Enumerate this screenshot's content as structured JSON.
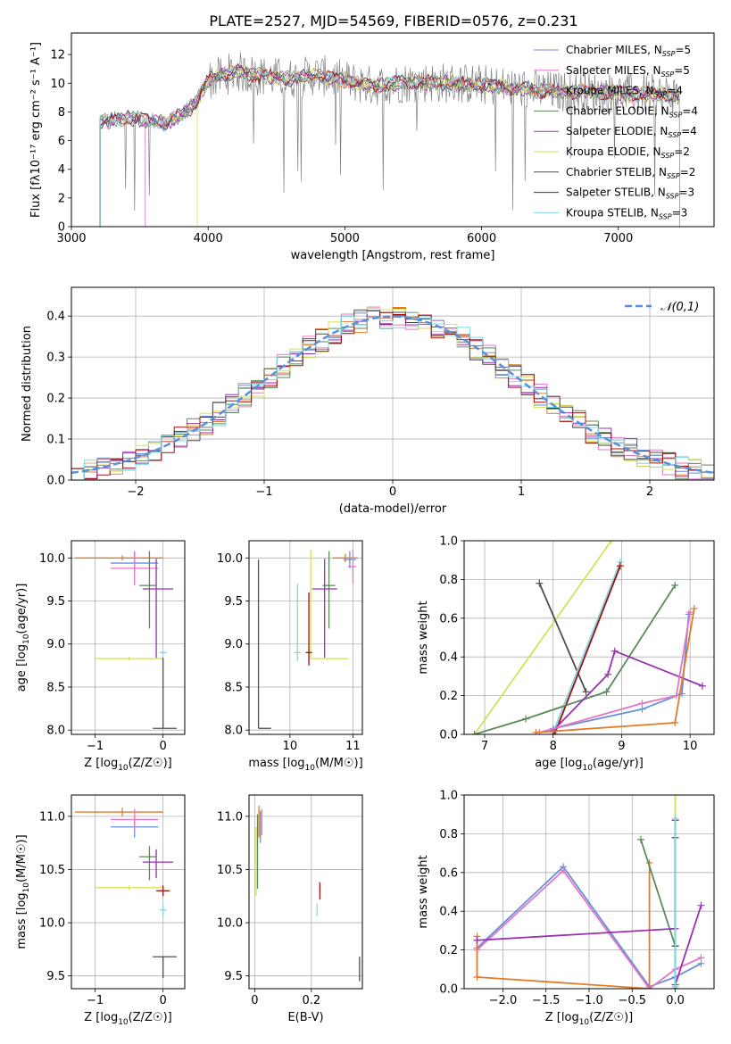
{
  "figure": {
    "title": "PLATE=2527, MJD=54569, FIBERID=0576, z=0.231"
  },
  "series": [
    {
      "name": "Chabrier MILES",
      "nssp": "5",
      "color": "#6a8fdb"
    },
    {
      "name": "Salpeter MILES",
      "nssp": "5",
      "color": "#e377c2"
    },
    {
      "name": "Kroupa MILES",
      "nssp": "4",
      "color": "#e07b2a"
    },
    {
      "name": "Chabrier ELODIE",
      "nssp": "4",
      "color": "#5a8a5a"
    },
    {
      "name": "Salpeter ELODIE",
      "nssp": "4",
      "color": "#9b30b0"
    },
    {
      "name": "Kroupa ELODIE",
      "nssp": "2",
      "color": "#d4e157"
    },
    {
      "name": "Chabrier STELIB",
      "nssp": "2",
      "color": "#4d4d4d"
    },
    {
      "name": "Salpeter STELIB",
      "nssp": "3",
      "color": "#a01010"
    },
    {
      "name": "Kroupa STELIB",
      "nssp": "3",
      "color": "#7fd8e0"
    }
  ],
  "chart_data": [
    {
      "id": "spectrum",
      "type": "line",
      "xlabel": "wavelength [Angstrom, rest frame]",
      "ylabel": "Flux [fλ10⁻¹⁷ erg cm⁻² s⁻¹ A⁻¹]",
      "xlim": [
        3000,
        7700
      ],
      "ylim": [
        0,
        13.5
      ],
      "xticks": [
        3000,
        4000,
        5000,
        6000,
        7000
      ],
      "yticks": [
        0,
        2,
        4,
        6,
        8,
        10,
        12
      ],
      "data_color": "#808080",
      "data_range": [
        3210,
        7450
      ],
      "model_range_starts": [
        3210,
        3540,
        3210,
        3210,
        3210,
        3920,
        3210,
        3210,
        3210
      ],
      "continuum": [
        [
          3210,
          7.3
        ],
        [
          3400,
          7.6
        ],
        [
          3600,
          7.4
        ],
        [
          3700,
          7.2
        ],
        [
          3800,
          7.8
        ],
        [
          3900,
          8.5
        ],
        [
          4000,
          10.2
        ],
        [
          4200,
          10.8
        ],
        [
          4400,
          10.5
        ],
        [
          4600,
          10.3
        ],
        [
          4800,
          10.6
        ],
        [
          5000,
          10.2
        ],
        [
          5200,
          9.8
        ],
        [
          5500,
          10.1
        ],
        [
          5800,
          10.0
        ],
        [
          6000,
          9.9
        ],
        [
          6200,
          9.7
        ],
        [
          6400,
          9.5
        ],
        [
          6600,
          9.4
        ],
        [
          6800,
          9.4
        ],
        [
          7000,
          9.3
        ],
        [
          7200,
          9.2
        ],
        [
          7450,
          9.2
        ]
      ]
    },
    {
      "id": "residuals",
      "type": "step",
      "xlabel": "(data-model)/error",
      "ylabel": "Normed distribution",
      "xlim": [
        -2.5,
        2.5
      ],
      "ylim": [
        0,
        0.47
      ],
      "xticks": [
        -2,
        -1,
        0,
        1,
        2
      ],
      "xtick_labels": [
        "−2",
        "−1",
        "0",
        "1",
        "2"
      ],
      "yticks": [
        0.0,
        0.1,
        0.2,
        0.3,
        0.4
      ],
      "legend": "N(0,1)",
      "gaussian": {
        "mu": 0,
        "sigma": 1,
        "color": "#5a8fdb"
      }
    },
    {
      "id": "age_vs_Z",
      "type": "errorbar",
      "xlabel": "Z [log10(Z/Z☉)]",
      "ylabel": "age  [log10(age/yr)]",
      "xlim": [
        -1.35,
        0.32
      ],
      "ylim": [
        7.95,
        10.2
      ],
      "xticks": [
        -1,
        0
      ],
      "xtick_labels": [
        "−1",
        "0"
      ],
      "yticks": [
        8.0,
        8.5,
        9.0,
        9.5,
        10.0
      ],
      "points": [
        {
          "s": 2,
          "x": -0.6,
          "xerr": [
            0.7,
            0.6
          ],
          "y": 10.0,
          "yerr": [
            0.03,
            0.03
          ]
        },
        {
          "s": 0,
          "x": -0.42,
          "xerr": [
            0.35,
            0.35
          ],
          "y": 9.94,
          "yerr": [
            0.1,
            0.12
          ]
        },
        {
          "s": 1,
          "x": -0.42,
          "xerr": [
            0.35,
            0.35
          ],
          "y": 9.88,
          "yerr": [
            0.2,
            0.2
          ]
        },
        {
          "s": 3,
          "x": -0.2,
          "xerr": [
            0.15,
            0.1
          ],
          "y": 9.68,
          "yerr": [
            0.5,
            0.4
          ]
        },
        {
          "s": 4,
          "x": -0.1,
          "xerr": [
            0.2,
            0.25
          ],
          "y": 9.64,
          "yerr": [
            0.8,
            0.35
          ]
        },
        {
          "s": 5,
          "x": -0.5,
          "xerr": [
            0.5,
            0.5
          ],
          "y": 8.83,
          "yerr": [
            0.02,
            0.02
          ]
        },
        {
          "s": 6,
          "x": 0.0,
          "xerr": [
            0.15,
            0.2
          ],
          "y": 8.02,
          "yerr": [
            0.0,
            0.82
          ]
        },
        {
          "s": 8,
          "x": 0.0,
          "xerr": [
            0.05,
            0.05
          ],
          "y": 8.9,
          "yerr": [
            0.02,
            0.02
          ]
        }
      ]
    },
    {
      "id": "age_vs_mass",
      "type": "errorbar",
      "xlabel": "mass [log10(M/M☉)]",
      "ylabel": "",
      "xlim": [
        9.35,
        11.15
      ],
      "ylim": [
        7.95,
        10.2
      ],
      "xticks": [
        10,
        11
      ],
      "yticks": [
        8.0,
        8.5,
        9.0,
        9.5,
        10.0
      ],
      "points": [
        {
          "s": 2,
          "x": 10.88,
          "xerr": [
            0.2,
            0.2
          ],
          "y": 10.0,
          "yerr": [
            0.05,
            0.05
          ]
        },
        {
          "s": 0,
          "x": 10.95,
          "xerr": [
            0.1,
            0.1
          ],
          "y": 9.98,
          "yerr": [
            0.1,
            0.1
          ]
        },
        {
          "s": 1,
          "x": 11.0,
          "xerr": [
            0.08,
            0.05
          ],
          "y": 9.9,
          "yerr": [
            0.2,
            0.2
          ]
        },
        {
          "s": 3,
          "x": 10.62,
          "xerr": [
            0.1,
            0.1
          ],
          "y": 9.68,
          "yerr": [
            0.5,
            0.4
          ]
        },
        {
          "s": 4,
          "x": 10.55,
          "xerr": [
            0.2,
            0.2
          ],
          "y": 9.64,
          "yerr": [
            0.8,
            0.35
          ]
        },
        {
          "s": 5,
          "x": 10.33,
          "xerr": [
            0.0,
            0.6
          ],
          "y": 8.83,
          "yerr": [
            0.0,
            1.27
          ]
        },
        {
          "s": 6,
          "x": 9.5,
          "xerr": [
            0.0,
            0.2
          ],
          "y": 8.02,
          "yerr": [
            0.0,
            1.96
          ]
        },
        {
          "s": 7,
          "x": 10.3,
          "xerr": [
            0.05,
            0.05
          ],
          "y": 8.9,
          "yerr": [
            0.15,
            0.7
          ]
        },
        {
          "s": 8,
          "x": 10.12,
          "xerr": [
            0.05,
            0.05
          ],
          "y": 8.9,
          "yerr": [
            0.1,
            0.8
          ]
        }
      ]
    },
    {
      "id": "weight_vs_age",
      "type": "line",
      "xlabel": "age  [log10(age/yr)]",
      "ylabel": "mass weight",
      "xlim": [
        6.7,
        10.35
      ],
      "ylim": [
        0,
        1.0
      ],
      "xticks": [
        7,
        8,
        9,
        10
      ],
      "yticks": [
        0.0,
        0.2,
        0.4,
        0.6,
        0.8,
        1.0
      ],
      "lines": [
        {
          "s": 5,
          "x": [
            6.85,
            8.85
          ],
          "y": [
            0.0,
            1.0
          ]
        },
        {
          "s": 6,
          "x": [
            7.8,
            8.48
          ],
          "y": [
            0.78,
            0.22
          ]
        },
        {
          "s": 8,
          "x": [
            8.0,
            8.98
          ],
          "y": [
            0.01,
            0.89
          ]
        },
        {
          "s": 7,
          "x": [
            8.02,
            8.98
          ],
          "y": [
            0.0,
            0.87
          ]
        },
        {
          "s": 3,
          "x": [
            6.85,
            7.6,
            8.78,
            9.78
          ],
          "y": [
            0.0,
            0.08,
            0.22,
            0.77
          ]
        },
        {
          "s": 4,
          "x": [
            8.0,
            8.8,
            8.9,
            10.18
          ],
          "y": [
            0.02,
            0.31,
            0.43,
            0.25
          ]
        },
        {
          "s": 0,
          "x": [
            8.0,
            9.3,
            9.88,
            9.98
          ],
          "y": [
            0.03,
            0.13,
            0.21,
            0.62
          ]
        },
        {
          "s": 1,
          "x": [
            7.8,
            9.3,
            9.8,
            10.0
          ],
          "y": [
            0.01,
            0.16,
            0.2,
            0.63
          ]
        },
        {
          "s": 2,
          "x": [
            7.75,
            9.78,
            10.06
          ],
          "y": [
            0.01,
            0.06,
            0.65
          ]
        }
      ]
    },
    {
      "id": "mass_vs_Z",
      "type": "errorbar",
      "xlabel": "Z [log10(Z/Z☉)]",
      "ylabel": "mass [log10(M/M☉)]",
      "xlim": [
        -1.35,
        0.32
      ],
      "ylim": [
        9.38,
        11.2
      ],
      "xticks": [
        -1,
        0
      ],
      "xtick_labels": [
        "−1",
        "0"
      ],
      "yticks": [
        9.5,
        10.0,
        10.5,
        11.0
      ],
      "points": [
        {
          "s": 2,
          "x": -0.6,
          "xerr": [
            0.7,
            0.6
          ],
          "y": 11.04,
          "yerr": [
            0.04,
            0.04
          ]
        },
        {
          "s": 0,
          "x": -0.42,
          "xerr": [
            0.35,
            0.35
          ],
          "y": 10.9,
          "yerr": [
            0.1,
            0.1
          ]
        },
        {
          "s": 1,
          "x": -0.42,
          "xerr": [
            0.35,
            0.35
          ],
          "y": 10.97,
          "yerr": [
            0.1,
            0.1
          ]
        },
        {
          "s": 3,
          "x": -0.2,
          "xerr": [
            0.15,
            0.1
          ],
          "y": 10.62,
          "yerr": [
            0.22,
            0.1
          ]
        },
        {
          "s": 4,
          "x": -0.1,
          "xerr": [
            0.2,
            0.25
          ],
          "y": 10.57,
          "yerr": [
            0.15,
            0.12
          ]
        },
        {
          "s": 5,
          "x": -0.5,
          "xerr": [
            0.5,
            0.5
          ],
          "y": 10.33,
          "yerr": [
            0.02,
            0.02
          ]
        },
        {
          "s": 6,
          "x": 0.0,
          "xerr": [
            0.15,
            0.2
          ],
          "y": 9.68,
          "yerr": [
            0.2,
            0.0
          ]
        },
        {
          "s": 7,
          "x": 0.0,
          "xerr": [
            0.1,
            0.1
          ],
          "y": 10.3,
          "yerr": [
            0.05,
            0.05
          ]
        },
        {
          "s": 8,
          "x": 0.0,
          "xerr": [
            0.05,
            0.05
          ],
          "y": 10.12,
          "yerr": [
            0.05,
            0.05
          ]
        }
      ]
    },
    {
      "id": "mass_vs_ebv",
      "type": "errorbar",
      "xlabel": "E(B-V)",
      "ylabel": "",
      "xlim": [
        -0.02,
        0.38
      ],
      "ylim": [
        9.38,
        11.2
      ],
      "xticks": [
        0.0,
        0.2
      ],
      "yticks": [
        9.5,
        10.0,
        10.5,
        11.0
      ],
      "points": [
        {
          "s": 0,
          "x": 0.02,
          "xerr": [
            0,
            0
          ],
          "y": 10.9,
          "yerr": [
            0.15,
            0.15
          ]
        },
        {
          "s": 1,
          "x": 0.025,
          "xerr": [
            0,
            0
          ],
          "y": 10.97,
          "yerr": [
            0.15,
            0.1
          ]
        },
        {
          "s": 2,
          "x": 0.015,
          "xerr": [
            0,
            0
          ],
          "y": 11.0,
          "yerr": [
            0.2,
            0.1
          ]
        },
        {
          "s": 3,
          "x": 0.01,
          "xerr": [
            0,
            0
          ],
          "y": 10.62,
          "yerr": [
            0.3,
            0.4
          ]
        },
        {
          "s": 5,
          "x": 0.005,
          "xerr": [
            0,
            0
          ],
          "y": 10.3,
          "yerr": [
            0.05,
            0.6
          ]
        },
        {
          "s": 6,
          "x": 0.37,
          "xerr": [
            0,
            0
          ],
          "y": 9.5,
          "yerr": [
            0.05,
            0.18
          ]
        },
        {
          "s": 7,
          "x": 0.23,
          "xerr": [
            0,
            0
          ],
          "y": 10.3,
          "yerr": [
            0.08,
            0.08
          ]
        },
        {
          "s": 8,
          "x": 0.22,
          "xerr": [
            0,
            0
          ],
          "y": 10.12,
          "yerr": [
            0.06,
            0.06
          ]
        }
      ]
    },
    {
      "id": "weight_vs_Z",
      "type": "line",
      "xlabel": "Z [log10(Z/Z☉)]",
      "ylabel": "mass weight",
      "xlim": [
        -2.45,
        0.45
      ],
      "ylim": [
        0,
        1.0
      ],
      "xticks": [
        -2.0,
        -1.5,
        -1.0,
        -0.5,
        0.0
      ],
      "xtick_labels": [
        "−2.0",
        "−1.5",
        "−1.0",
        "−0.5",
        "0.0"
      ],
      "yticks": [
        0.0,
        0.2,
        0.4,
        0.6,
        0.8,
        1.0
      ],
      "lines": [
        {
          "s": 0,
          "x": [
            -2.3,
            -1.3,
            -0.3,
            0.0,
            0.3
          ],
          "y": [
            0.21,
            0.63,
            0.01,
            0.06,
            0.13
          ]
        },
        {
          "s": 1,
          "x": [
            -2.3,
            -1.3,
            -0.3,
            0.0,
            0.3
          ],
          "y": [
            0.2,
            0.61,
            0.0,
            0.1,
            0.16
          ]
        },
        {
          "s": 2,
          "x": [
            -2.3,
            -2.3,
            -0.3,
            -0.3
          ],
          "y": [
            0.27,
            0.06,
            0.0,
            0.65
          ]
        },
        {
          "s": 3,
          "x": [
            -0.4,
            0.0,
            0.0
          ],
          "y": [
            0.77,
            0.22,
            0.0
          ]
        },
        {
          "s": 4,
          "x": [
            -2.3,
            0.0,
            0.0,
            0.3
          ],
          "y": [
            0.25,
            0.31,
            0.02,
            0.43
          ]
        },
        {
          "s": 5,
          "x": [
            0.0,
            0.0
          ],
          "y": [
            0.0,
            1.0
          ]
        },
        {
          "s": 6,
          "x": [
            0.0,
            0.0
          ],
          "y": [
            0.78,
            0.22
          ]
        },
        {
          "s": 7,
          "x": [
            0.0,
            0.0
          ],
          "y": [
            0.0,
            0.87
          ]
        },
        {
          "s": 8,
          "x": [
            0.0,
            0.0
          ],
          "y": [
            0.01,
            0.88
          ]
        }
      ]
    }
  ]
}
